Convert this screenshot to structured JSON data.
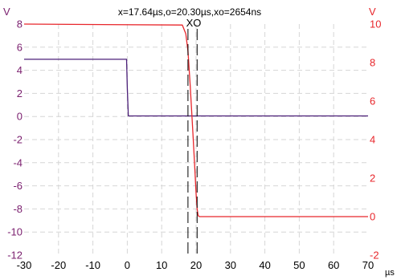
{
  "readout": "x=17.64µs,o=20.30µs,xo=2654ns",
  "cursor_label": "XO",
  "units": {
    "left": "V",
    "right": "V",
    "x": "µs"
  },
  "colors": {
    "left_axis": "#7a1e6e",
    "right_axis": "#e8262b",
    "purple_trace": "#4b1f78",
    "red_trace": "#e8262b",
    "grid": "#d6d6d6",
    "cursor": "#000000"
  },
  "chart_data": {
    "type": "line",
    "xlim": [
      -30,
      70
    ],
    "x_ticks": [
      -30,
      -20,
      -10,
      0,
      10,
      20,
      30,
      40,
      50,
      60,
      70
    ],
    "left_axis": {
      "ylim": [
        -12,
        8
      ],
      "ticks": [
        8,
        6,
        4,
        2,
        0,
        -2,
        -4,
        -6,
        -8,
        -10,
        -12
      ],
      "unit": "V"
    },
    "right_axis": {
      "ylim": [
        -2,
        10
      ],
      "ticks": [
        10,
        8,
        6,
        4,
        2,
        0,
        -2
      ],
      "unit": "V"
    },
    "grid": true,
    "cursors": [
      {
        "label": "X",
        "x": 17.64
      },
      {
        "label": "O",
        "x": 20.3
      }
    ],
    "series": [
      {
        "axis": "left",
        "color": "#4b1f78",
        "x": [
          -30,
          -0.2,
          0,
          0.3,
          70
        ],
        "y": [
          4.95,
          4.95,
          2.5,
          0.05,
          0.05
        ]
      },
      {
        "axis": "right",
        "color": "#e8262b",
        "x": [
          -30,
          16,
          17,
          17.64,
          18.3,
          19,
          19.6,
          20,
          20.3,
          20.6,
          21,
          70
        ],
        "y": [
          10,
          9.95,
          9.5,
          8.6,
          6.8,
          4.6,
          2.6,
          1.2,
          0.4,
          0.05,
          0,
          0
        ]
      }
    ]
  }
}
